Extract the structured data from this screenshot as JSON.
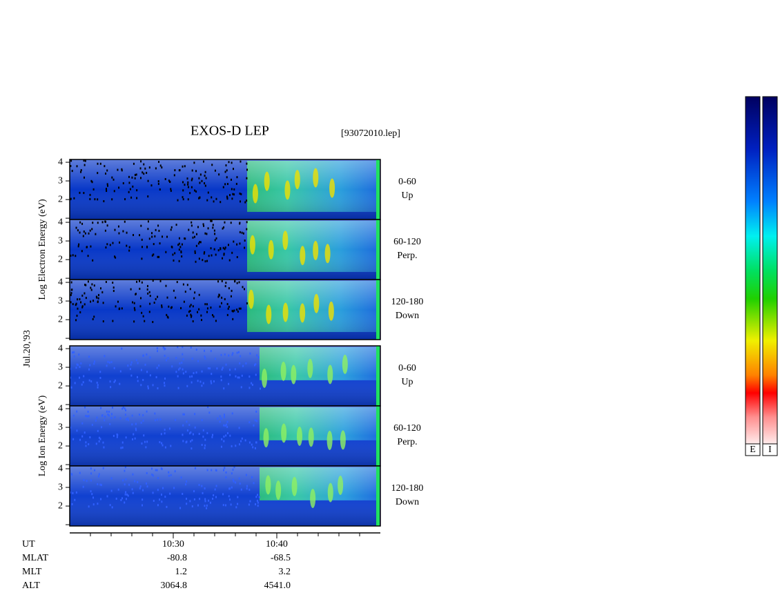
{
  "header": {
    "title": "EXOS-D LEP",
    "file": "[93072010.lep]"
  },
  "date": "Jul.20,'93",
  "groups": [
    {
      "label": "Log  Electron  Energy (eV)",
      "panels": [
        {
          "range": "0-60",
          "direction": "Up"
        },
        {
          "range": "60-120",
          "direction": "Perp."
        },
        {
          "range": "120-180",
          "direction": "Down"
        }
      ]
    },
    {
      "label": "Log  Ion  Energy (eV)",
      "panels": [
        {
          "range": "0-60",
          "direction": "Up"
        },
        {
          "range": "60-120",
          "direction": "Perp."
        },
        {
          "range": "120-180",
          "direction": "Down"
        }
      ]
    }
  ],
  "yaxis": {
    "ylim": [
      0.93,
      4.15
    ],
    "yticks": [
      2,
      3,
      4
    ],
    "minor_yticks": [
      1
    ]
  },
  "xaxis": {
    "xlim": [
      620,
      650
    ],
    "xticks": [
      {
        "value": 630,
        "label": "10:30"
      },
      {
        "value": 640,
        "label": "10:40"
      }
    ],
    "minor_xticks": [
      622,
      624,
      626,
      628,
      632,
      634,
      636,
      638,
      642,
      644,
      646,
      648
    ]
  },
  "ephemeris": {
    "time_label": "UT",
    "rows": [
      {
        "name": "MLAT",
        "values": [
          "-80.8",
          "-68.5"
        ]
      },
      {
        "name": "MLT",
        "values": [
          "1.2",
          "3.2"
        ]
      },
      {
        "name": "ALT",
        "values": [
          "3064.8",
          "4541.0"
        ]
      }
    ]
  },
  "colorbars": [
    "E",
    "I"
  ]
}
